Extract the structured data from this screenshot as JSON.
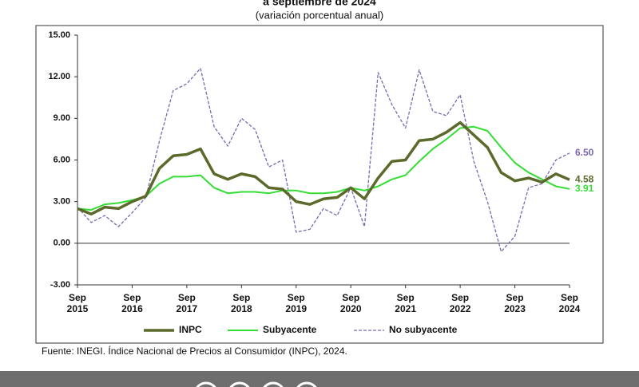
{
  "chart_data": {
    "type": "line",
    "title": "a septiembre de 2024",
    "subtitle": "(variación porcentual anual)",
    "source": "Fuente: INEGI. Índice Nacional de Precios al Consumidor (INPC), 2024.",
    "categories": [
      "Sep 2015",
      null,
      null,
      null,
      "Sep 2016",
      null,
      null,
      null,
      "Sep 2017",
      null,
      null,
      null,
      "Sep 2018",
      null,
      null,
      null,
      "Sep 2019",
      null,
      null,
      null,
      "Sep 2020",
      null,
      null,
      null,
      "Sep 2021",
      null,
      null,
      null,
      "Sep 2022",
      null,
      null,
      null,
      "Sep 2023",
      null,
      null,
      null,
      "Sep 2024"
    ],
    "ylim": [
      -3,
      15
    ],
    "yticks": [
      {
        "value": -3,
        "label": "-3.00"
      },
      {
        "value": 0,
        "label": "0.00"
      },
      {
        "value": 3,
        "label": "3.00"
      },
      {
        "value": 6,
        "label": "6.00"
      },
      {
        "value": 9,
        "label": "9.00"
      },
      {
        "value": 12,
        "label": "12.00"
      },
      {
        "value": 15,
        "label": "15.00"
      }
    ],
    "series": [
      {
        "name": "INPC",
        "color": "#5b6a2b",
        "values": [
          2.5,
          2.1,
          2.6,
          2.5,
          3.0,
          3.4,
          5.4,
          6.3,
          6.4,
          6.8,
          5.0,
          4.6,
          5.0,
          4.8,
          4.0,
          3.9,
          3.0,
          2.8,
          3.2,
          3.3,
          4.0,
          3.2,
          4.7,
          5.9,
          6.0,
          7.4,
          7.5,
          8.0,
          8.7,
          7.8,
          6.9,
          5.1,
          4.5,
          4.7,
          4.4,
          5.0,
          4.58
        ],
        "value_labels": [
          null,
          null,
          null,
          null,
          null,
          null,
          null,
          null,
          null,
          null,
          null,
          null,
          null,
          null,
          null,
          null,
          null,
          null,
          null,
          null,
          null,
          null,
          null,
          null,
          null,
          null,
          null,
          null,
          null,
          null,
          null,
          null,
          null,
          null,
          null,
          null,
          "4.58"
        ]
      },
      {
        "name": "Subyacente",
        "color": "#33dd33",
        "values": [
          2.5,
          2.4,
          2.8,
          2.9,
          3.1,
          3.4,
          4.3,
          4.8,
          4.8,
          4.9,
          4.0,
          3.6,
          3.7,
          3.7,
          3.6,
          3.8,
          3.8,
          3.6,
          3.6,
          3.7,
          4.0,
          3.8,
          4.1,
          4.6,
          4.9,
          5.9,
          6.8,
          7.5,
          8.3,
          8.4,
          8.1,
          6.9,
          5.8,
          5.1,
          4.6,
          4.1,
          3.91
        ],
        "value_labels": [
          null,
          null,
          null,
          null,
          null,
          null,
          null,
          null,
          null,
          null,
          null,
          null,
          null,
          null,
          null,
          null,
          null,
          null,
          null,
          null,
          null,
          null,
          null,
          null,
          null,
          null,
          null,
          null,
          null,
          null,
          null,
          null,
          null,
          null,
          null,
          null,
          "3.91"
        ]
      },
      {
        "name": "No subyacente",
        "color": "#7b68b0",
        "dashed": true,
        "values": [
          2.6,
          1.5,
          2.0,
          1.2,
          2.2,
          3.3,
          7.4,
          11.0,
          11.5,
          12.6,
          8.4,
          7.0,
          9.0,
          8.2,
          5.5,
          6.0,
          0.8,
          1.0,
          2.5,
          2.0,
          4.0,
          1.2,
          12.3,
          10.0,
          8.3,
          12.5,
          9.5,
          9.2,
          10.7,
          5.9,
          3.0,
          -0.6,
          0.5,
          4.0,
          4.3,
          6.0,
          6.5
        ],
        "value_labels": [
          null,
          null,
          null,
          null,
          null,
          null,
          null,
          null,
          null,
          null,
          null,
          null,
          null,
          null,
          null,
          null,
          null,
          null,
          null,
          null,
          null,
          null,
          null,
          null,
          null,
          null,
          null,
          null,
          null,
          null,
          null,
          null,
          null,
          null,
          null,
          null,
          "6.50"
        ]
      }
    ]
  }
}
